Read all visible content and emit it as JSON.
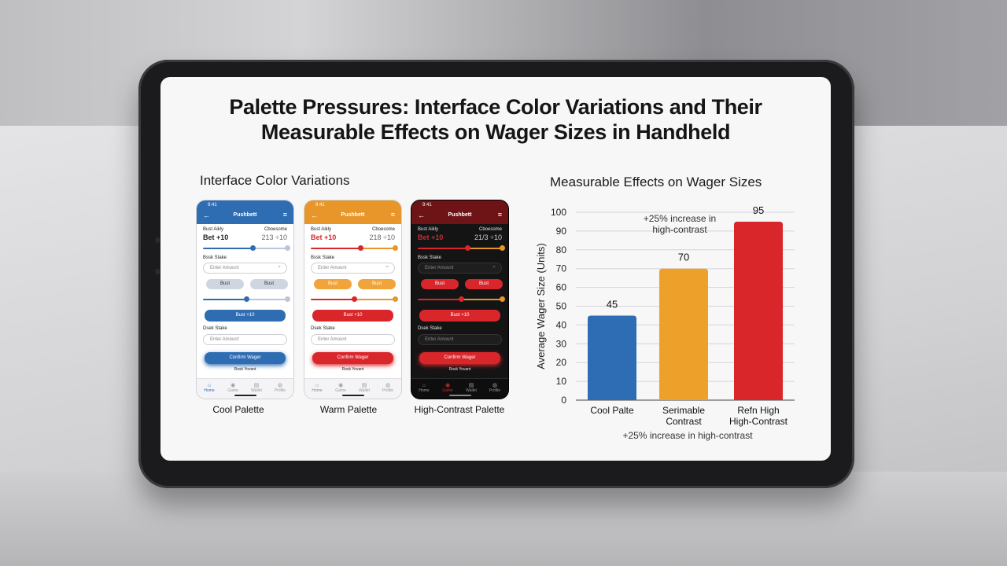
{
  "title_line1": "Palette Pressures: Interface Color Variations and Their",
  "title_line2": "Measurable Effects on Wager Sizes in Handheld",
  "left_heading": "Interface Color Variations",
  "right_heading": "Measurable Effects on Wager Sizes",
  "phones": [
    {
      "key": "cool",
      "label": "Cool Palette",
      "time": "9:41",
      "app_title": "Pushbett",
      "row1_left": "Bust Aikly",
      "row1_right": "Cboesome",
      "bet_left": "Bet +10",
      "bet_right": "213 ÷10",
      "stake_label": "Bssk Stake",
      "amount_placeholder": "Enter Amount",
      "chip_a": "Bust",
      "chip_b": "Bust",
      "bet_button": "Bust +10",
      "stake_label2": "Dsek Stake",
      "amount_placeholder2": "Enter Amount",
      "confirm": "Confirm Wager",
      "footer_text": "Rosk Yovant",
      "nav": [
        "Home",
        "Game",
        "Wallet",
        "Profile"
      ],
      "colors": {
        "accent": "#2f6db3",
        "head": "#2f6db3",
        "bg": "#ffffff",
        "soft": "#cfd6e0",
        "text": "#222222",
        "field": "#ffffff",
        "track2": "#b9c7d8"
      }
    },
    {
      "key": "warm",
      "label": "Warm Palette",
      "time": "9:41",
      "app_title": "Pushbett",
      "row1_left": "Bust Aikly",
      "row1_right": "Cboesome",
      "bet_left": "Bet +10",
      "bet_right": "218 ÷10",
      "stake_label": "Bssk Stake",
      "amount_placeholder": "Enter Amount",
      "chip_a": "Bust",
      "chip_b": "Bust",
      "bet_button": "Bust +10",
      "stake_label2": "Dsek Stake",
      "amount_placeholder2": "Enter Amount",
      "confirm": "Confirm Wager",
      "footer_text": "Rosk Yovant",
      "nav": [
        "Home",
        "Game",
        "Wallet",
        "Profile"
      ],
      "colors": {
        "accent": "#e8962a",
        "head": "#e8962a",
        "bg": "#ffffff",
        "soft": "#f0a43a",
        "text": "#222222",
        "field": "#ffffff",
        "track2": "#e8962a",
        "alert": "#d9262b"
      }
    },
    {
      "key": "contrast",
      "label": "High-Contrast Palette",
      "time": "9:41",
      "app_title": "Pushbett",
      "row1_left": "Bust Aikly",
      "row1_right": "Cboesome",
      "bet_left": "Bet +10",
      "bet_right": "21/3 ÷10",
      "stake_label": "Bssk Stake",
      "amount_placeholder": "Enter Amount",
      "chip_a": "Bust",
      "chip_b": "Bust",
      "bet_button": "Bust +10",
      "stake_label2": "Dsek Stake",
      "amount_placeholder2": "Enter Amount",
      "confirm": "Confirm Wager",
      "footer_text": "Rosk Yovant",
      "nav": [
        "Home",
        "Game",
        "Wallet",
        "Profile"
      ],
      "colors": {
        "accent": "#d9262b",
        "head": "#6e1416",
        "bg": "#141414",
        "soft": "#d9262b",
        "text": "#e6e6e6",
        "field": "#1e1e1e",
        "track2": "#e8962a"
      }
    }
  ],
  "chart_data": {
    "type": "bar",
    "categories": [
      "Cool Palte",
      "Serimable Contrast",
      "Refn High High-Contrast"
    ],
    "values": [
      45,
      70,
      95
    ],
    "value_labels": [
      "45",
      "70",
      "95"
    ],
    "colors": [
      "#2e6cb4",
      "#eea12a",
      "#d9262b"
    ],
    "ylabel": "Average Wager Size (Units)",
    "ylim": [
      0,
      100
    ],
    "yticks": [
      0,
      10,
      20,
      30,
      40,
      50,
      60,
      70,
      80,
      90,
      100
    ],
    "grid": true,
    "annotation_top": "+25% increase in high-contrast",
    "annotation_bottom": "+25% increase in high-contrast"
  }
}
